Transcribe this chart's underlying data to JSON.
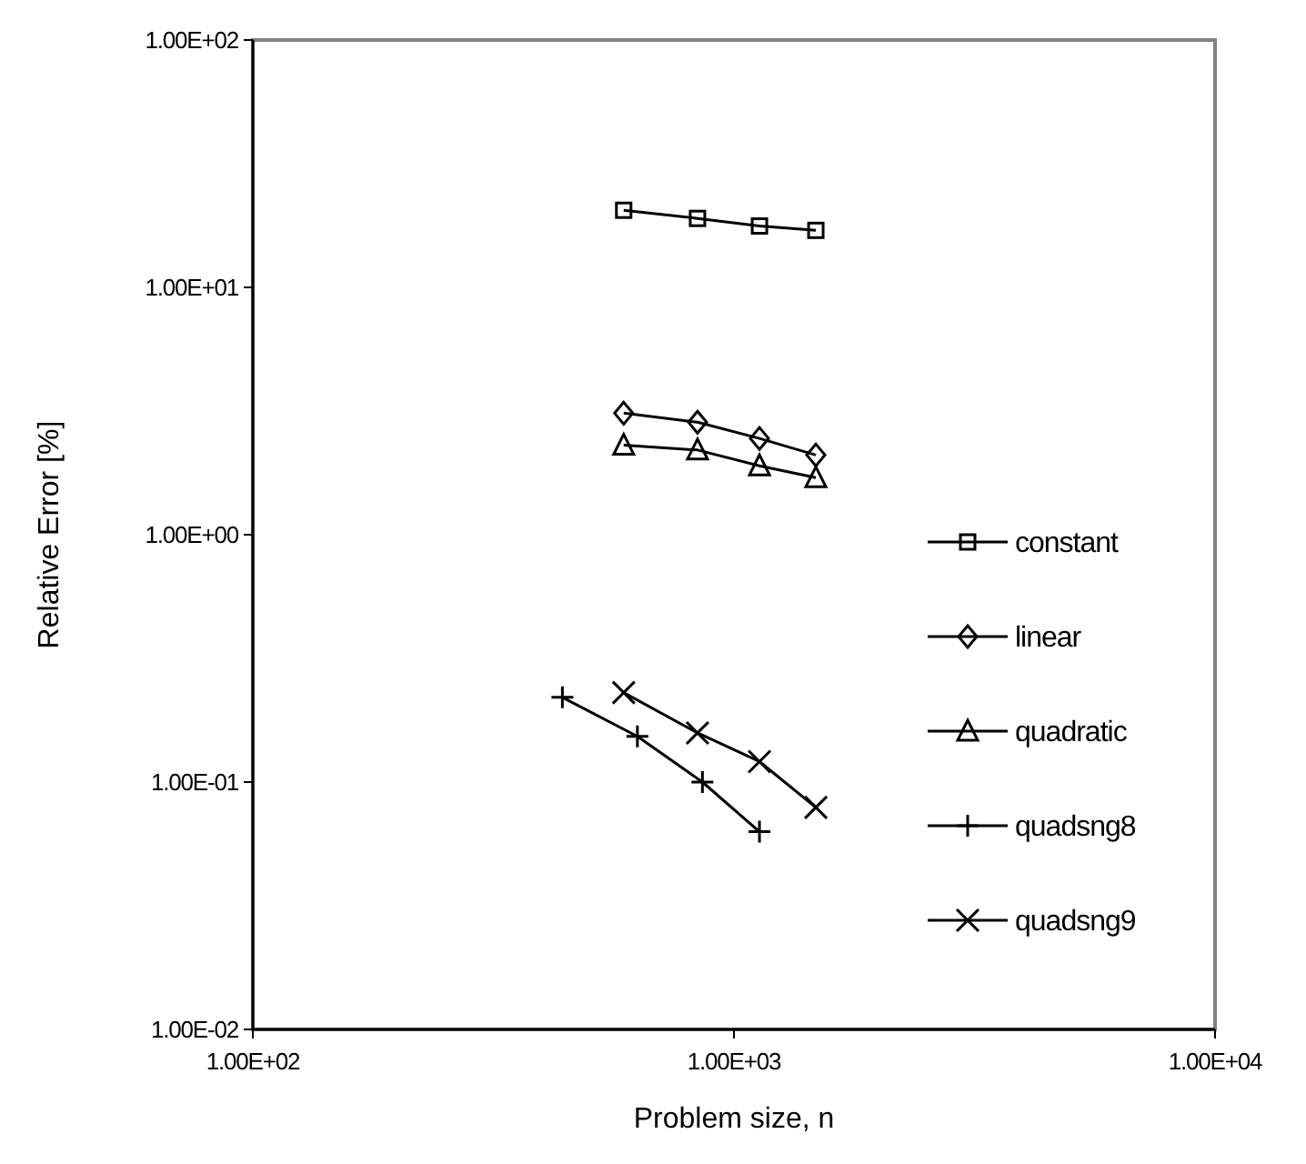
{
  "chart_data": {
    "type": "line",
    "xlabel": "Problem size, n",
    "ylabel": "Relative Error [%]",
    "log": "xy",
    "xlim": [
      100,
      10000
    ],
    "ylim": [
      0.01,
      100
    ],
    "xticks": [
      {
        "value": 100,
        "label": "1.00E+02"
      },
      {
        "value": 1000,
        "label": "1.00E+03"
      },
      {
        "value": 10000,
        "label": "1.00E+04"
      }
    ],
    "yticks": [
      {
        "value": 0.01,
        "label": "1.00E-02"
      },
      {
        "value": 0.1,
        "label": "1.00E-01"
      },
      {
        "value": 1,
        "label": "1.00E+00"
      },
      {
        "value": 10,
        "label": "1.00E+01"
      },
      {
        "value": 100,
        "label": "1.00E+02"
      }
    ],
    "grid": false,
    "legend": "right",
    "line_style": "solid",
    "series": [
      {
        "name": "constant",
        "color": "#000000",
        "marker": "square",
        "x": [
          590,
          840,
          1130,
          1480
        ],
        "values": [
          20.5,
          19,
          17.7,
          17
        ]
      },
      {
        "name": "linear",
        "color": "#000000",
        "marker": "diamond",
        "x": [
          590,
          840,
          1130,
          1480
        ],
        "values": [
          3.1,
          2.85,
          2.45,
          2.1
        ]
      },
      {
        "name": "quadratic",
        "color": "#000000",
        "marker": "triangle",
        "x": [
          590,
          840,
          1130,
          1480
        ],
        "values": [
          2.3,
          2.2,
          1.9,
          1.7
        ]
      },
      {
        "name": "quadsng8",
        "color": "#000000",
        "marker": "plus",
        "x": [
          440,
          630,
          860,
          1130
        ],
        "values": [
          0.22,
          0.153,
          0.1,
          0.063
        ]
      },
      {
        "name": "quadsng9",
        "color": "#000000",
        "marker": "cross",
        "x": [
          590,
          840,
          1130,
          1480
        ],
        "values": [
          0.23,
          0.158,
          0.121,
          0.079
        ]
      }
    ]
  }
}
